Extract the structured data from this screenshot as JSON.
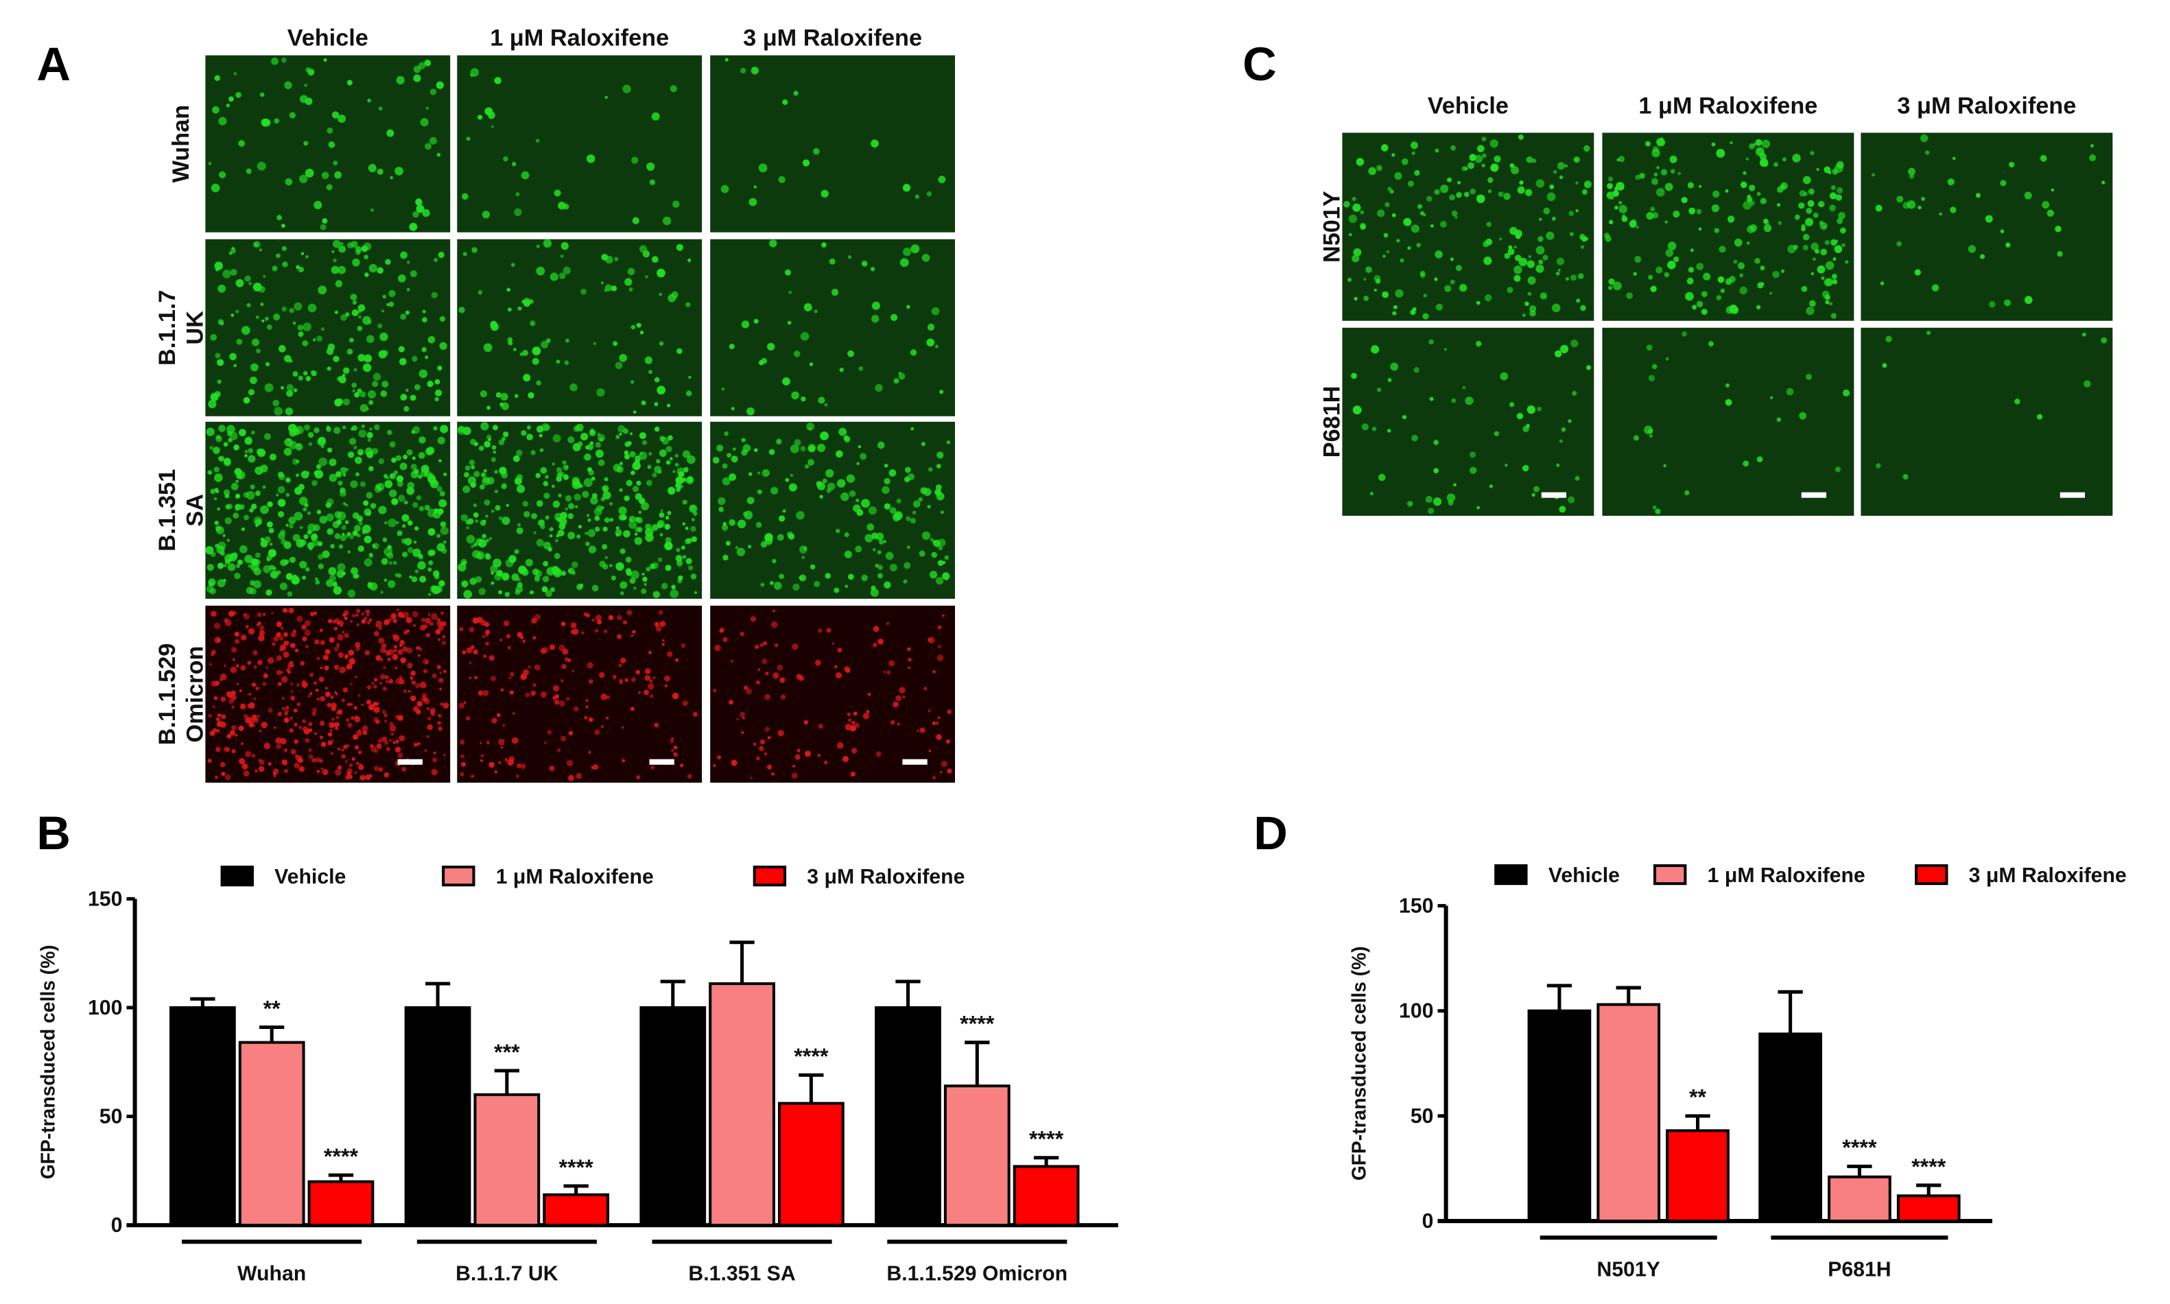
{
  "panel_labels": {
    "a": "A",
    "b": "B",
    "c": "C",
    "d": "D"
  },
  "panel_a": {
    "columns": [
      "Vehicle",
      "1 μM Raloxifene",
      "3 μM Raloxifene"
    ],
    "rows": [
      [
        "Wuhan"
      ],
      [
        "B.1.1.7",
        "UK"
      ],
      [
        "B.1.351",
        "SA"
      ],
      [
        "B.1.1.529",
        "Omicron"
      ]
    ],
    "row_colors": [
      "#22e022",
      "#22e022",
      "#22e022",
      "#e01818"
    ]
  },
  "panel_c": {
    "columns": [
      "Vehicle",
      "1 μM Raloxifene",
      "3 μM Raloxifene"
    ],
    "rows": [
      [
        "N501Y"
      ],
      [
        "P681H"
      ]
    ],
    "row_colors": [
      "#22e022",
      "#22e022"
    ]
  },
  "colors": {
    "vehicle": "#000000",
    "ral1": "#f88080",
    "ral3": "#ff0000"
  },
  "chart_data": [
    {
      "type": "bar",
      "panel": "B",
      "ylabel": "GFP-transduced cells (%)",
      "ylim": [
        0,
        150
      ],
      "yticks": [
        "0",
        "50",
        "100",
        "150"
      ],
      "legend": [
        "Vehicle",
        "1 μM Raloxifene",
        "3 μM Raloxifene"
      ],
      "legend_position": "top",
      "categories": [
        "Wuhan",
        "B.1.1.7 UK",
        "B.1.351 SA",
        "B.1.1.529 Omicron"
      ],
      "series": [
        {
          "name": "Vehicle",
          "values": [
            100,
            100,
            100,
            100
          ],
          "errors": [
            4,
            11,
            12,
            12
          ],
          "stars": [
            "",
            "",
            "",
            ""
          ]
        },
        {
          "name": "1 μM Raloxifene",
          "values": [
            84,
            60,
            111,
            64
          ],
          "errors": [
            7,
            11,
            19,
            20
          ],
          "stars": [
            "**",
            "***",
            "",
            "****"
          ]
        },
        {
          "name": "3 μM Raloxifene",
          "values": [
            20,
            14,
            56,
            27
          ],
          "errors": [
            3,
            4,
            13,
            4
          ],
          "stars": [
            "****",
            "****",
            "****",
            "****"
          ]
        }
      ]
    },
    {
      "type": "bar",
      "panel": "D",
      "ylabel": "GFP-transduced cells (%)",
      "ylim": [
        0,
        150
      ],
      "yticks": [
        "0",
        "50",
        "100",
        "150"
      ],
      "legend": [
        "Vehicle",
        "1 μM Raloxifene",
        "3 μM Raloxifene"
      ],
      "legend_position": "top",
      "categories": [
        "N501Y",
        "P681H"
      ],
      "series": [
        {
          "name": "Vehicle",
          "values": [
            100,
            89
          ],
          "errors": [
            12,
            20
          ],
          "stars": [
            "",
            ""
          ]
        },
        {
          "name": "1 μM Raloxifene",
          "values": [
            103,
            21
          ],
          "errors": [
            8,
            5
          ],
          "stars": [
            "",
            "****"
          ]
        },
        {
          "name": "3 μM Raloxifene",
          "values": [
            43,
            12
          ],
          "errors": [
            7,
            5
          ],
          "stars": [
            "**",
            "****"
          ]
        }
      ]
    }
  ]
}
